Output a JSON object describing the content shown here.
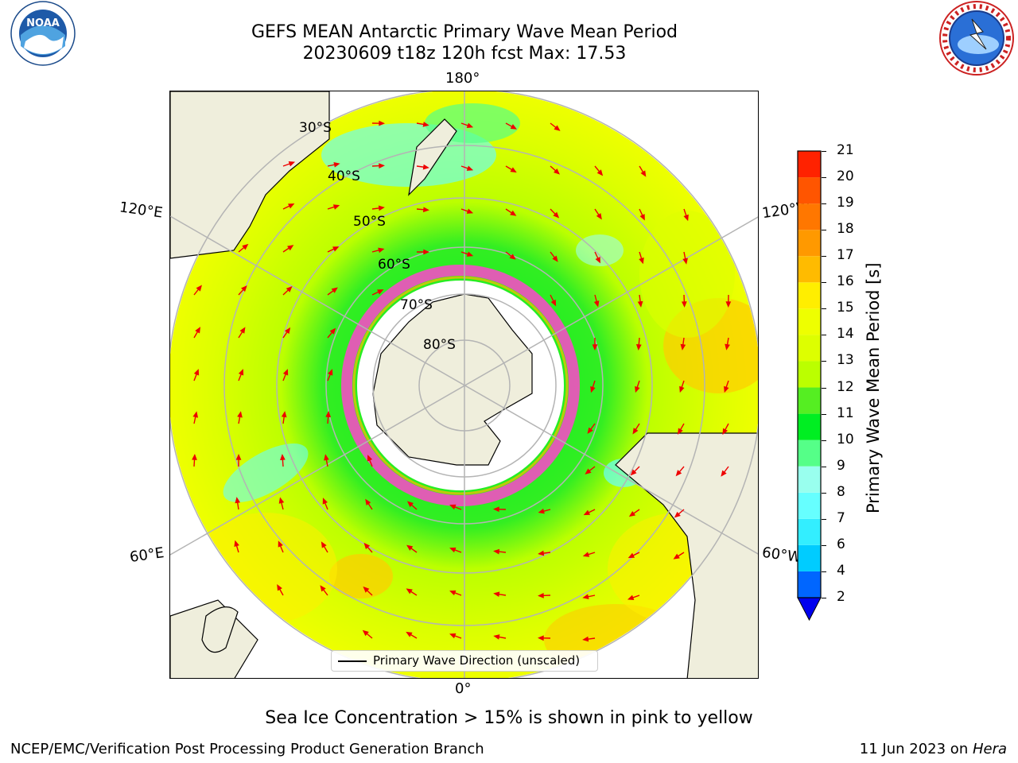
{
  "header": {
    "title_line1": "GEFS MEAN Antarctic Primary Wave Mean Period",
    "title_line2": "20230609 t18z 120h fcst   Max: 17.53"
  },
  "logos": {
    "left": {
      "icon": "noaa-logo",
      "text": "NOAA",
      "ring_text": "NATIONAL OCEANIC AND ATMOSPHERIC ADMINISTRATION · U.S. DEPARTMENT OF COMMERCE"
    },
    "right": {
      "icon": "nws-logo",
      "ring_text": "NATIONAL WEATHER SERVICE"
    }
  },
  "map": {
    "longitude_labels": {
      "top": "180°",
      "bottom": "0°",
      "left_upper": "120°E",
      "left_lower": "60°E",
      "right_upper": "120°W",
      "right_lower": "60°W"
    },
    "latitude_labels": [
      "30°S",
      "40°S",
      "50°S",
      "60°S",
      "70°S",
      "80°S"
    ],
    "legend_label": "Primary Wave Direction (unscaled)"
  },
  "colorbar": {
    "title": "Primary Wave Mean Period [s]",
    "ticks": [
      "21",
      "20",
      "19",
      "18",
      "17",
      "16",
      "15",
      "14",
      "13",
      "12",
      "11",
      "10",
      "9",
      "8",
      "7",
      "6",
      "4",
      "2"
    ],
    "levels": [
      {
        "range": "2-4",
        "color": "#0066ff"
      },
      {
        "range": "4-6",
        "color": "#00ccff"
      },
      {
        "range": "6-7",
        "color": "#33eeff"
      },
      {
        "range": "7-8",
        "color": "#66ffff"
      },
      {
        "range": "8-9",
        "color": "#99ffee"
      },
      {
        "range": "9-10",
        "color": "#55ff88"
      },
      {
        "range": "10-11",
        "color": "#00ee22"
      },
      {
        "range": "11-12",
        "color": "#55ee22"
      },
      {
        "range": "12-13",
        "color": "#bbff00"
      },
      {
        "range": "13-14",
        "color": "#ddff00"
      },
      {
        "range": "14-15",
        "color": "#eeff00"
      },
      {
        "range": "15-16",
        "color": "#ffee00"
      },
      {
        "range": "16-17",
        "color": "#ffbb00"
      },
      {
        "range": "17-18",
        "color": "#ff9900"
      },
      {
        "range": "18-19",
        "color": "#ff7700"
      },
      {
        "range": "19-20",
        "color": "#ff5500"
      },
      {
        "range": "20-21",
        "color": "#ff2200"
      }
    ],
    "under_color": "#0000ee"
  },
  "caption": "Sea Ice Concentration > 15% is shown in pink to yellow",
  "footer": {
    "left": "NCEP/EMC/Verification Post Processing Product Generation Branch",
    "date": "11 Jun 2023 on ",
    "machine": "Hera"
  }
}
